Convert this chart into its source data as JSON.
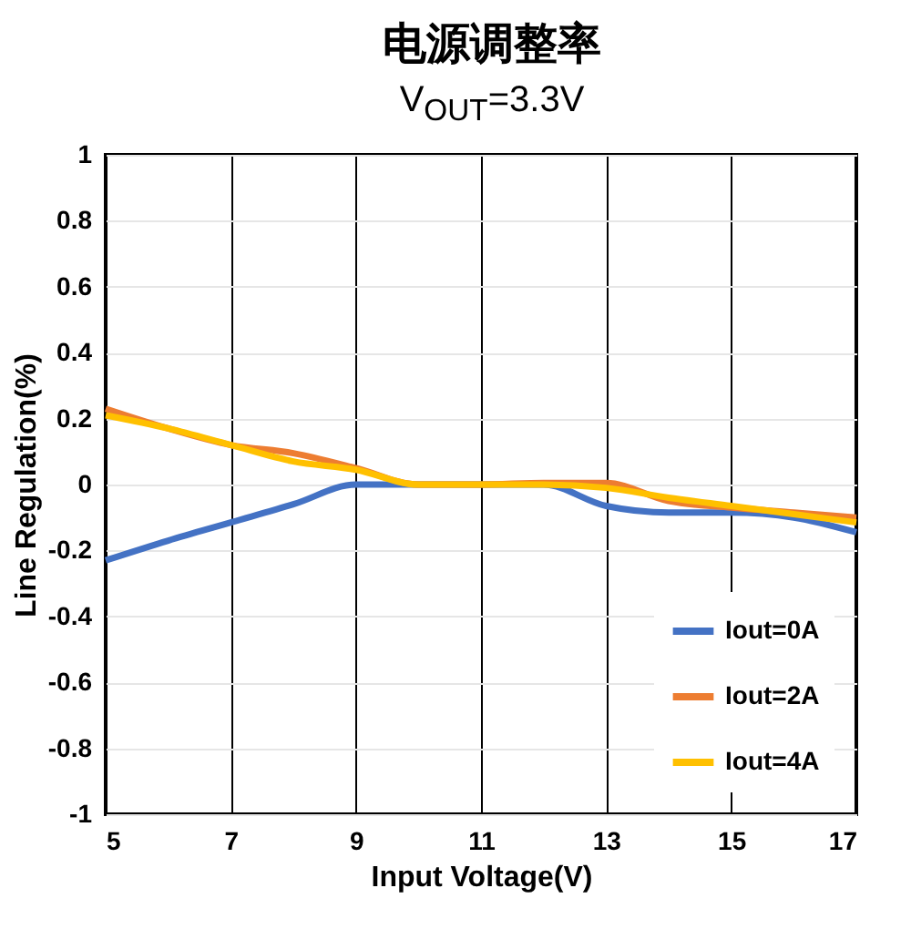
{
  "chart_data": {
    "type": "line",
    "title": "电源调整率",
    "subtitle": "V$_{OUT}$=3.3V",
    "xlabel": "Input Voltage(V)",
    "ylabel": "Line Regulation(%)",
    "x": [
      5,
      6,
      7,
      8,
      9,
      10,
      11,
      12,
      13,
      14,
      15,
      16,
      17
    ],
    "series": [
      {
        "name": "Iout=0A",
        "color": "#4472c4",
        "values": [
          -0.23,
          -0.17,
          -0.115,
          -0.06,
          0.0,
          0.0,
          0.0,
          0.0,
          -0.065,
          -0.085,
          -0.085,
          -0.1,
          -0.145
        ]
      },
      {
        "name": "Iout=2A",
        "color": "#ed7d31",
        "values": [
          0.23,
          0.17,
          0.12,
          0.095,
          0.05,
          0.0,
          0.0,
          0.005,
          0.005,
          -0.05,
          -0.07,
          -0.085,
          -0.1
        ]
      },
      {
        "name": "Iout=4A",
        "color": "#ffc000",
        "values": [
          0.21,
          0.17,
          0.12,
          0.07,
          0.045,
          0.0,
          0.0,
          0.0,
          -0.01,
          -0.04,
          -0.065,
          -0.09,
          -0.115
        ]
      }
    ],
    "xlim": [
      5,
      17
    ],
    "xticks": [
      5,
      7,
      9,
      11,
      13,
      15,
      17
    ],
    "ylim": [
      -1,
      1
    ],
    "yticks": [
      -1,
      -0.8,
      -0.6,
      -0.4,
      -0.2,
      0,
      0.2,
      0.4,
      0.6,
      0.8,
      1
    ],
    "grid": true,
    "legend": "bottom right",
    "marker": "none",
    "line_style": "solid"
  }
}
